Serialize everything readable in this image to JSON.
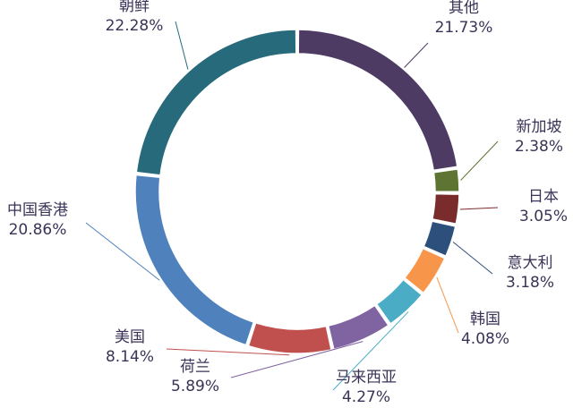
{
  "chart_data": {
    "type": "pie",
    "variant": "donut",
    "title": "",
    "legend": "none",
    "slices": [
      {
        "name": "其他",
        "value": 21.73,
        "label": "21.73%",
        "color": "#4d3b63"
      },
      {
        "name": "新加坡",
        "value": 2.38,
        "label": "2.38%",
        "color": "#5e7433"
      },
      {
        "name": "日本",
        "value": 3.05,
        "label": "3.05%",
        "color": "#7a2c2c"
      },
      {
        "name": "意大利",
        "value": 3.18,
        "label": "3.18%",
        "color": "#2d4f7c"
      },
      {
        "name": "韩国",
        "value": 4.08,
        "label": "4.08%",
        "color": "#f7964b"
      },
      {
        "name": "马来西亚",
        "value": 4.27,
        "label": "4.27%",
        "color": "#4bacc6"
      },
      {
        "name": "荷兰",
        "value": 5.89,
        "label": "5.89%",
        "color": "#8064a2"
      },
      {
        "name": "美国",
        "value": 8.14,
        "label": "8.14%",
        "color": "#9bbb59"
      },
      {
        "name": "中国香港",
        "value": 20.86,
        "label": "20.86%",
        "color": "#c0504d"
      },
      {
        "name": "朝鲜",
        "value": 22.28,
        "label": "22.28%",
        "color": "#4f81bd"
      }
    ]
  }
}
